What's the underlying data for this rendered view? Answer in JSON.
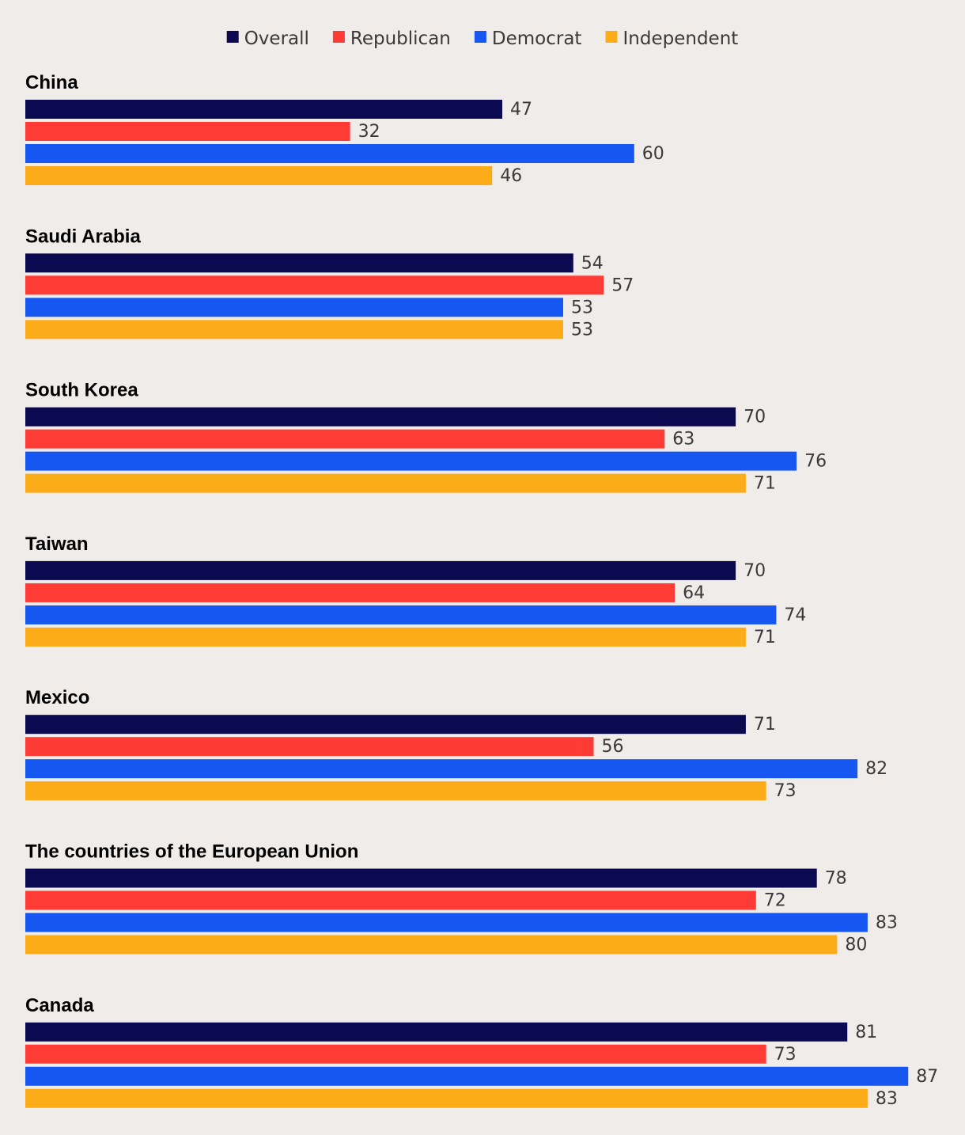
{
  "chart_data": {
    "type": "bar",
    "orientation": "horizontal",
    "legend_position": "top-center",
    "categories": [
      "China",
      "Saudi Arabia",
      "South Korea",
      "Taiwan",
      "Mexico",
      "The countries of the European Union",
      "Canada"
    ],
    "series": [
      {
        "name": "Overall",
        "color": "#0b0950",
        "values": [
          47,
          54,
          70,
          70,
          71,
          78,
          81
        ]
      },
      {
        "name": "Republican",
        "color": "#fe3b35",
        "values": [
          32,
          57,
          63,
          64,
          56,
          72,
          73
        ]
      },
      {
        "name": "Democrat",
        "color": "#1657f2",
        "values": [
          60,
          53,
          76,
          74,
          82,
          83,
          87
        ]
      },
      {
        "name": "Independent",
        "color": "#fdac19",
        "values": [
          46,
          53,
          71,
          71,
          73,
          80,
          83
        ]
      }
    ],
    "xlim": [
      0,
      100
    ],
    "title": "",
    "xlabel": "",
    "ylabel": ""
  }
}
